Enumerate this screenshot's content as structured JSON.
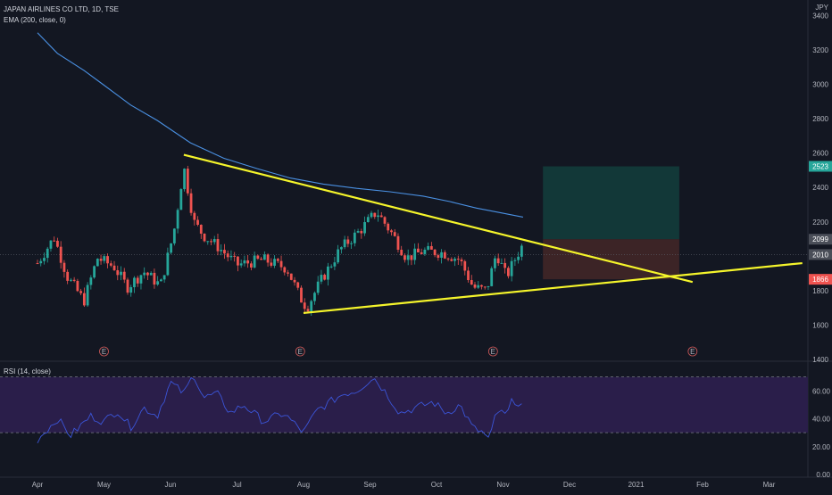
{
  "header": {
    "title": "JAPAN AIRLINES CO LTD, 1D, TSE",
    "indicator": "EMA (200, close, 0)",
    "currency": "JPY"
  },
  "rsi_panel": {
    "label": "RSI (14, close)"
  },
  "colors": {
    "background": "#131722",
    "up": "#26a69a",
    "down": "#ef5350",
    "ema": "#4a90e2",
    "trendline": "#f5f52b",
    "rsi_line": "#3b55d9",
    "rsi_band": "#2a1e4a",
    "target_zone": "#123838",
    "stop_zone": "#3c2426",
    "label_green": "#26a69a",
    "label_gray": "#4a4e58",
    "label_red": "#ef5350"
  },
  "chart_data": [
    {
      "type": "candlestick",
      "title": "JAPAN AIRLINES CO LTD, 1D, TSE",
      "ylim": [
        1400,
        3480
      ],
      "y_ticks": [
        1400,
        1600,
        1800,
        2000,
        2200,
        2400,
        2600,
        2800,
        3000,
        3200,
        3400
      ],
      "x_ticks": [
        "Apr",
        "May",
        "Jun",
        "Jul",
        "Aug",
        "Sep",
        "Oct",
        "Nov",
        "Dec",
        "2021",
        "Feb",
        "Mar"
      ],
      "price_labels": [
        {
          "value": 2523,
          "style": "green"
        },
        {
          "value": 2099,
          "style": "gray"
        },
        {
          "value": 2010,
          "style": "gray"
        },
        {
          "value": 1866,
          "style": "red"
        }
      ],
      "earnings_markers": [
        "E",
        "E",
        "E",
        "E"
      ],
      "ema_200": [
        {
          "t": 0,
          "v": 3300
        },
        {
          "t": 0.3,
          "v": 3180
        },
        {
          "t": 0.7,
          "v": 3080
        },
        {
          "t": 1.0,
          "v": 2995
        },
        {
          "t": 1.4,
          "v": 2880
        },
        {
          "t": 1.8,
          "v": 2790
        },
        {
          "t": 2.3,
          "v": 2660
        },
        {
          "t": 2.8,
          "v": 2570
        },
        {
          "t": 3.3,
          "v": 2510
        },
        {
          "t": 3.8,
          "v": 2455
        },
        {
          "t": 4.3,
          "v": 2420
        },
        {
          "t": 4.8,
          "v": 2395
        },
        {
          "t": 5.3,
          "v": 2375
        },
        {
          "t": 5.8,
          "v": 2350
        },
        {
          "t": 6.2,
          "v": 2318
        },
        {
          "t": 6.6,
          "v": 2280
        },
        {
          "t": 7.0,
          "v": 2250
        },
        {
          "t": 7.3,
          "v": 2228
        }
      ],
      "candle_path": [
        {
          "t": 0,
          "v": 1960
        },
        {
          "t": 0.25,
          "v": 2110
        },
        {
          "t": 0.45,
          "v": 1880
        },
        {
          "t": 0.7,
          "v": 1740
        },
        {
          "t": 0.9,
          "v": 1990
        },
        {
          "t": 1.15,
          "v": 1940
        },
        {
          "t": 1.35,
          "v": 1820
        },
        {
          "t": 1.6,
          "v": 1910
        },
        {
          "t": 1.85,
          "v": 1830
        },
        {
          "t": 2.05,
          "v": 2140
        },
        {
          "t": 2.2,
          "v": 2520
        },
        {
          "t": 2.35,
          "v": 2200
        },
        {
          "t": 2.5,
          "v": 2120
        },
        {
          "t": 2.7,
          "v": 2060
        },
        {
          "t": 3.0,
          "v": 1950
        },
        {
          "t": 3.4,
          "v": 1980
        },
        {
          "t": 3.75,
          "v": 1930
        },
        {
          "t": 3.95,
          "v": 1760
        },
        {
          "t": 4.05,
          "v": 1700
        },
        {
          "t": 4.25,
          "v": 1850
        },
        {
          "t": 4.55,
          "v": 2040
        },
        {
          "t": 4.85,
          "v": 2150
        },
        {
          "t": 5.1,
          "v": 2260
        },
        {
          "t": 5.35,
          "v": 2120
        },
        {
          "t": 5.55,
          "v": 1990
        },
        {
          "t": 5.8,
          "v": 2030
        },
        {
          "t": 6.1,
          "v": 2020
        },
        {
          "t": 6.35,
          "v": 1980
        },
        {
          "t": 6.55,
          "v": 1820
        },
        {
          "t": 6.75,
          "v": 1800
        },
        {
          "t": 6.9,
          "v": 2020
        },
        {
          "t": 7.05,
          "v": 1880
        },
        {
          "t": 7.2,
          "v": 2000
        },
        {
          "t": 7.28,
          "v": 2055
        }
      ],
      "trendlines": [
        {
          "from": {
            "t": 2.2,
            "v": 2590
          },
          "to": {
            "t": 9.85,
            "v": 1850
          }
        },
        {
          "from": {
            "t": 4.0,
            "v": 1670
          },
          "to": {
            "t": 11.5,
            "v": 1960
          }
        }
      ],
      "position": {
        "t_start": 7.6,
        "t_end": 9.65,
        "target": 2523,
        "entry": 2099,
        "stop": 1866
      }
    },
    {
      "type": "line",
      "title": "RSI (14, close)",
      "ylim": [
        0,
        80
      ],
      "y_ticks": [
        0.0,
        20.0,
        40.0,
        60.0
      ],
      "band": [
        30,
        70
      ],
      "values": [
        {
          "t": 0,
          "v": 25
        },
        {
          "t": 0.3,
          "v": 40
        },
        {
          "t": 0.5,
          "v": 28
        },
        {
          "t": 0.8,
          "v": 42
        },
        {
          "t": 1.0,
          "v": 38
        },
        {
          "t": 1.2,
          "v": 46
        },
        {
          "t": 1.4,
          "v": 34
        },
        {
          "t": 1.6,
          "v": 48
        },
        {
          "t": 1.8,
          "v": 42
        },
        {
          "t": 2.0,
          "v": 66
        },
        {
          "t": 2.2,
          "v": 58
        },
        {
          "t": 2.35,
          "v": 72
        },
        {
          "t": 2.5,
          "v": 55
        },
        {
          "t": 2.7,
          "v": 58
        },
        {
          "t": 2.9,
          "v": 44
        },
        {
          "t": 3.1,
          "v": 50
        },
        {
          "t": 3.4,
          "v": 38
        },
        {
          "t": 3.7,
          "v": 44
        },
        {
          "t": 4.0,
          "v": 30
        },
        {
          "t": 4.2,
          "v": 46
        },
        {
          "t": 4.4,
          "v": 52
        },
        {
          "t": 4.6,
          "v": 58
        },
        {
          "t": 4.8,
          "v": 60
        },
        {
          "t": 5.05,
          "v": 70
        },
        {
          "t": 5.25,
          "v": 58
        },
        {
          "t": 5.45,
          "v": 44
        },
        {
          "t": 5.7,
          "v": 48
        },
        {
          "t": 5.95,
          "v": 52
        },
        {
          "t": 6.15,
          "v": 44
        },
        {
          "t": 6.35,
          "v": 50
        },
        {
          "t": 6.55,
          "v": 33
        },
        {
          "t": 6.7,
          "v": 30
        },
        {
          "t": 6.8,
          "v": 24
        },
        {
          "t": 6.9,
          "v": 46
        },
        {
          "t": 7.05,
          "v": 42
        },
        {
          "t": 7.15,
          "v": 54
        },
        {
          "t": 7.28,
          "v": 50
        }
      ]
    }
  ]
}
